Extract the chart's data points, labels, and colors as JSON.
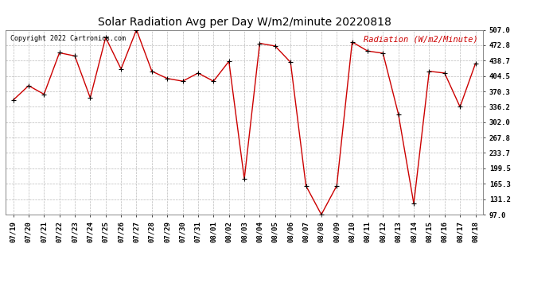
{
  "title": "Solar Radiation Avg per Day W/m2/minute 20220818",
  "copyright": "Copyright 2022 Cartronics.com",
  "legend_label": "Radiation (W/m2/Minute)",
  "x_labels": [
    "07/19",
    "07/20",
    "07/21",
    "07/22",
    "07/23",
    "07/24",
    "07/25",
    "07/26",
    "07/27",
    "07/28",
    "07/29",
    "07/30",
    "07/31",
    "08/01",
    "08/02",
    "08/03",
    "08/04",
    "08/05",
    "08/06",
    "08/07",
    "08/08",
    "08/09",
    "08/10",
    "08/11",
    "08/12",
    "08/13",
    "08/14",
    "08/15",
    "08/16",
    "08/17",
    "08/18"
  ],
  "values": [
    351,
    383,
    364,
    456,
    449,
    356,
    490,
    420,
    507,
    415,
    399,
    393,
    411,
    393,
    437,
    176,
    477,
    471,
    435,
    161,
    97,
    161,
    480,
    460,
    455,
    320,
    121,
    415,
    411,
    336,
    432
  ],
  "y_ticks": [
    97.0,
    131.2,
    165.3,
    199.5,
    233.7,
    267.8,
    302.0,
    336.2,
    370.3,
    404.5,
    438.7,
    472.8,
    507.0
  ],
  "line_color": "#cc0000",
  "marker_color": "#000000",
  "bg_color": "#ffffff",
  "grid_color": "#bbbbbb",
  "title_fontsize": 10,
  "tick_fontsize": 6.5,
  "copyright_color": "#000000",
  "legend_color": "#cc0000",
  "y_min": 97.0,
  "y_max": 507.0
}
